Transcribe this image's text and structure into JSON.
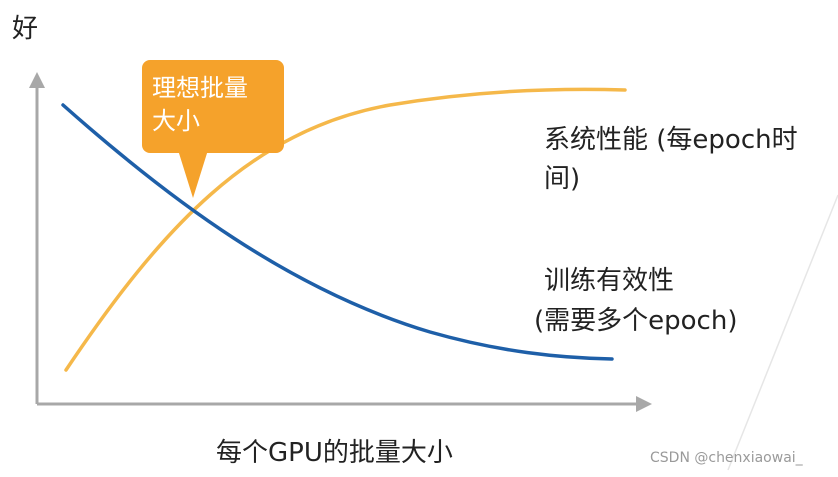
{
  "y_axis_label": "好",
  "x_axis_label": "每个GPU的批量大小",
  "callout": {
    "line1": "理想批量",
    "line2": "大小"
  },
  "curves": {
    "system_performance": {
      "line1": "系统性能 (每epoch时",
      "line2": "间)",
      "color": "#f5b84a"
    },
    "training_effectiveness": {
      "line1": "训练有效性",
      "line2": "(需要多个epoch)",
      "color": "#1e5fa8"
    }
  },
  "callout_color": "#f5a22b",
  "axis_color": "#a8a8a8",
  "watermark": "CSDN @chenxiaowai_"
}
